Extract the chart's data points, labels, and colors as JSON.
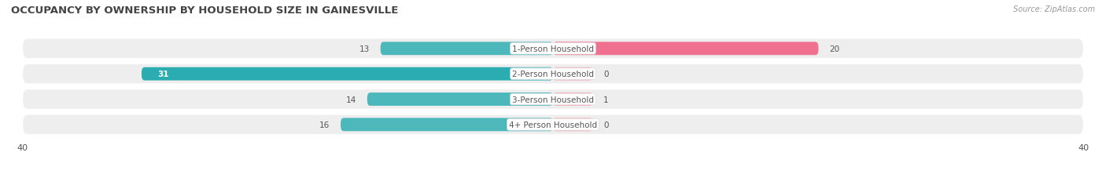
{
  "title": "OCCUPANCY BY OWNERSHIP BY HOUSEHOLD SIZE IN GAINESVILLE",
  "source": "Source: ZipAtlas.com",
  "categories": [
    "1-Person Household",
    "2-Person Household",
    "3-Person Household",
    "4+ Person Household"
  ],
  "owner_values": [
    13,
    31,
    14,
    16
  ],
  "renter_values": [
    20,
    0,
    1,
    0
  ],
  "owner_color": "#4db8bc",
  "renter_color": "#f07090",
  "renter_color_light": "#f5aabb",
  "row_bg_color": "#eeeeee",
  "xlim": 40,
  "title_fontsize": 9.5,
  "axis_fontsize": 8,
  "val_fontsize": 7.5,
  "cat_fontsize": 7.5,
  "source_fontsize": 7,
  "legend_fontsize": 7.5
}
